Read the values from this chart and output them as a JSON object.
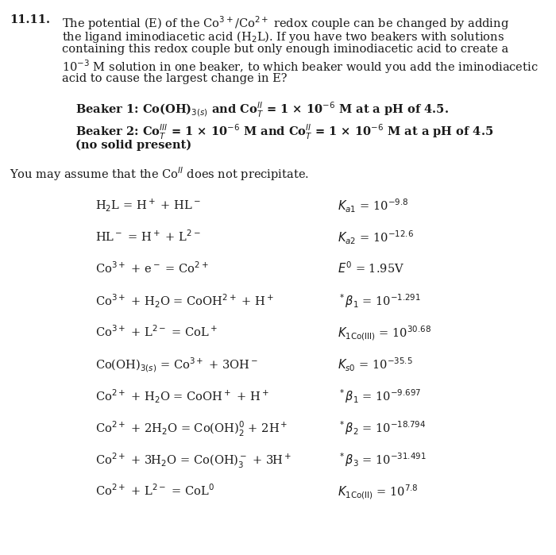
{
  "title_number": "11.11.",
  "intro_lines": [
    "The potential (E) of the Co$^{3+}$/Co$^{2+}$ redox couple can be changed by adding",
    "the ligand iminodiacetic acid (H$_2$L). If you have two beakers with solutions",
    "containing this redox couple but only enough iminodiacetic acid to create a",
    "10$^{-3}$ M solution in one beaker, to which beaker would you add the iminodiacetic",
    "acid to cause the largest change in E?"
  ],
  "beaker1": "Beaker 1: Co(OH)$_{3(s)}$ and Co$_T^{II}$ = 1 × 10$^{-6}$ M at a pH of 4.5.",
  "beaker2": "Beaker 2: Co$_T^{III}$ = 1 × 10$^{-6}$ M and Co$_T^{II}$ = 1 × 10$^{-6}$ M at a pH of 4.5",
  "beaker2b": "(no solid present)",
  "assumption": "You may assume that the Co$^{II}$ does not precipitate.",
  "equations_left": [
    "H$_2$L = H$^+$ + HL$^-$",
    "HL$^-$ = H$^+$ + L$^{2-}$",
    "Co$^{3+}$ + e$^-$ = Co$^{2+}$",
    "Co$^{3+}$ + H$_2$O = CoOH$^{2+}$ + H$^+$",
    "Co$^{3+}$ + L$^{2-}$ = CoL$^+$",
    "Co(OH)$_{3(s)}$ = Co$^{3+}$ + 3OH$^-$",
    "Co$^{2+}$ + H$_2$O = CoOH$^+$ + H$^+$",
    "Co$^{2+}$ + 2H$_2$O = Co(OH)$_2^0$ + 2H$^+$",
    "Co$^{2+}$ + 3H$_2$O = Co(OH)$_3^-$ + 3H$^+$",
    "Co$^{2+}$ + L$^{2-}$ = CoL$^0$"
  ],
  "equations_right": [
    "$K_{a1}$ = 10$^{-9.8}$",
    "$K_{a2}$ = 10$^{-12.6}$",
    "$E^0$ = 1.95V",
    "$^*\\beta_1$ = 10$^{-1.291}$",
    "$K_{1\\mathrm{Co(III)}}$ = 10$^{30.68}$",
    "$K_{s0}$ = 10$^{-35.5}$",
    "$^*\\beta_1$ = 10$^{-9.697}$",
    "$^*\\beta_2$ = 10$^{-18.794}$",
    "$^*\\beta_3$ = 10$^{-31.491}$",
    "$K_{1\\mathrm{Co(II)}}$ = 10$^{7.8}$"
  ],
  "bg_color": "#ffffff",
  "text_color": "#1a1a1a"
}
